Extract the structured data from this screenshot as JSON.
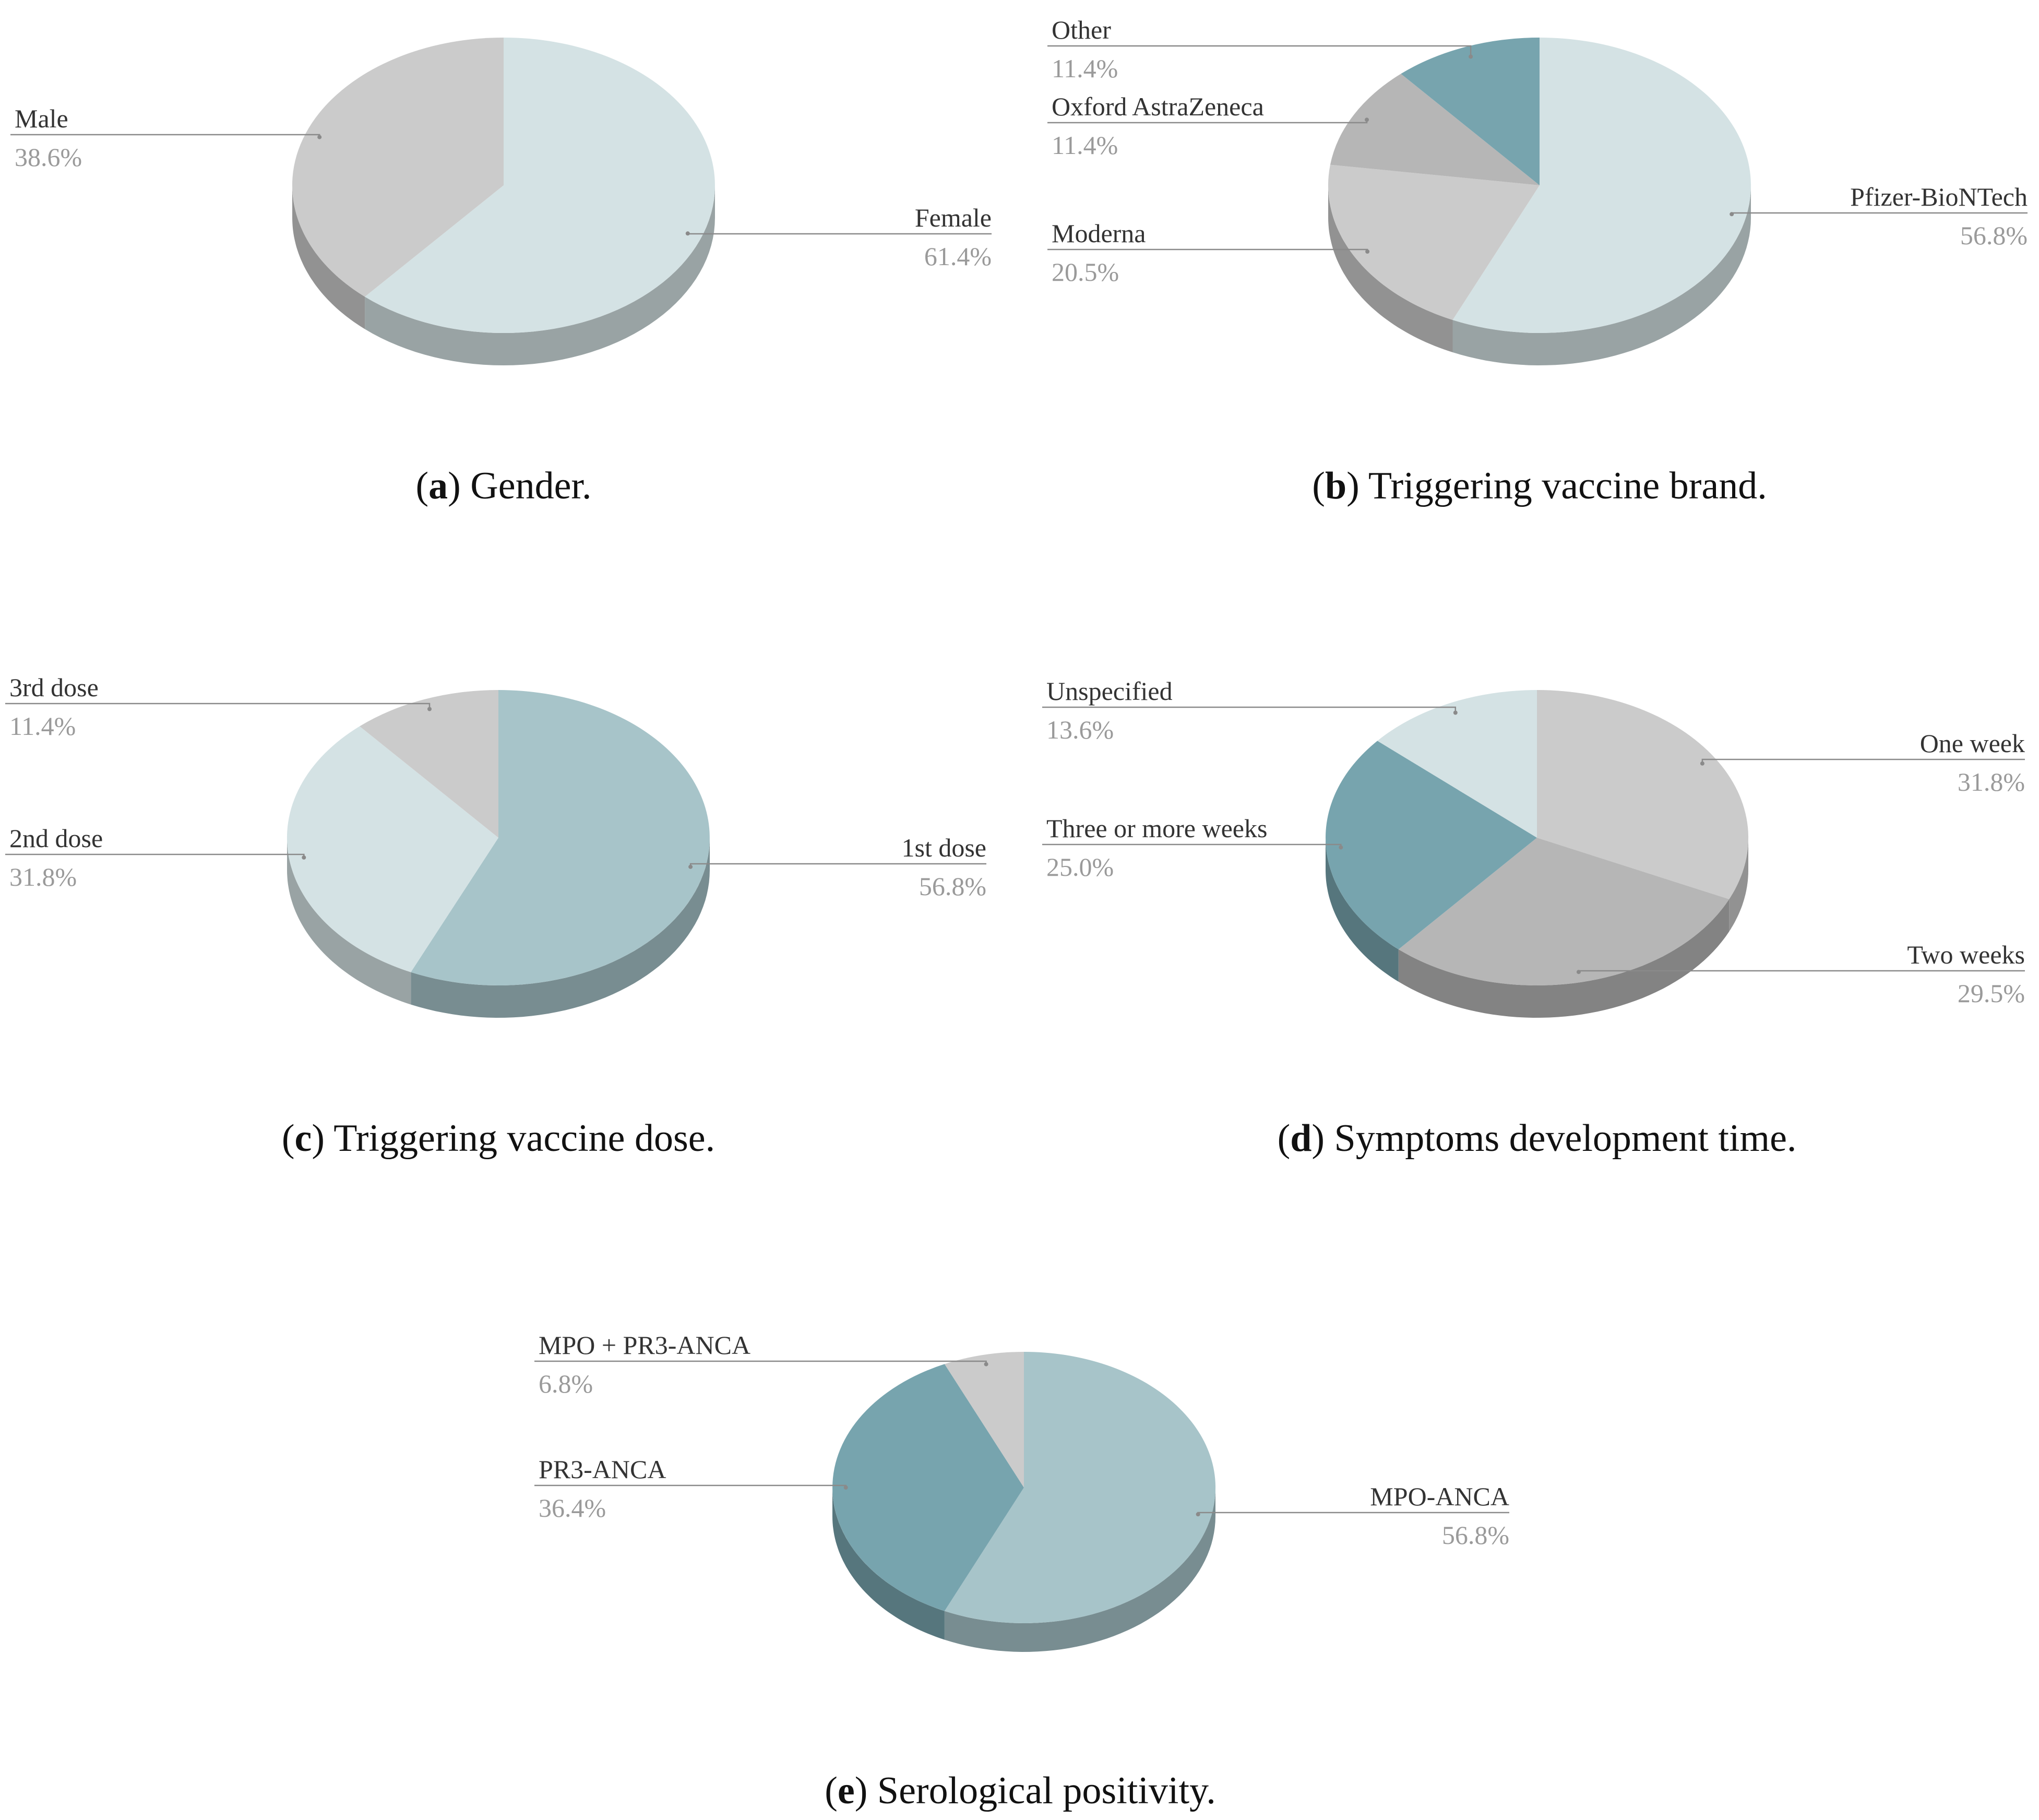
{
  "chart_data": [
    {
      "type": "pie",
      "caption_letter": "a",
      "caption_text": "Gender.",
      "slices": [
        {
          "label": "Female",
          "value": 61.4,
          "pct_text": "61.4%",
          "color": "#d4e2e4"
        },
        {
          "label": "Male",
          "value": 38.6,
          "pct_text": "38.6%",
          "color": "#cbcbcb"
        }
      ]
    },
    {
      "type": "pie",
      "caption_letter": "b",
      "caption_text": "Triggering vaccine brand.",
      "slices": [
        {
          "label": "Pfizer-BioNTech",
          "value": 56.8,
          "pct_text": "56.8%",
          "color": "#d4e2e4"
        },
        {
          "label": "Moderna",
          "value": 20.5,
          "pct_text": "20.5%",
          "color": "#cbcbcb"
        },
        {
          "label": "Oxford AstraZeneca",
          "value": 11.4,
          "pct_text": "11.4%",
          "color": "#b6b6b6"
        },
        {
          "label": "Other",
          "value": 11.4,
          "pct_text": "11.4%",
          "color": "#77a4ae"
        }
      ]
    },
    {
      "type": "pie",
      "caption_letter": "c",
      "caption_text": "Triggering vaccine dose.",
      "slices": [
        {
          "label": "1st dose",
          "value": 56.8,
          "pct_text": "56.8%",
          "color": "#a7c4c9"
        },
        {
          "label": "2nd dose",
          "value": 31.8,
          "pct_text": "31.8%",
          "color": "#d4e2e4"
        },
        {
          "label": "3rd dose",
          "value": 11.4,
          "pct_text": "11.4%",
          "color": "#cbcbcb"
        }
      ]
    },
    {
      "type": "pie",
      "caption_letter": "d",
      "caption_text": "Symptoms development time.",
      "slices": [
        {
          "label": "One week",
          "value": 31.8,
          "pct_text": "31.8%",
          "color": "#cbcbcb"
        },
        {
          "label": "Two weeks",
          "value": 29.5,
          "pct_text": "29.5%",
          "color": "#b6b6b6"
        },
        {
          "label": "Three or more weeks",
          "value": 25.0,
          "pct_text": "25.0%",
          "color": "#77a4ae"
        },
        {
          "label": "Unspecified",
          "value": 13.6,
          "pct_text": "13.6%",
          "color": "#d4e2e4"
        }
      ]
    },
    {
      "type": "pie",
      "caption_letter": "e",
      "caption_text": "Serological positivity.",
      "slices": [
        {
          "label": "MPO-ANCA",
          "value": 56.8,
          "pct_text": "56.8%",
          "color": "#a7c4c9"
        },
        {
          "label": "PR3-ANCA",
          "value": 36.4,
          "pct_text": "36.4%",
          "color": "#77a4ae"
        },
        {
          "label": "MPO + PR3-ANCA",
          "value": 6.8,
          "pct_text": "6.8%",
          "color": "#cbcbcb"
        }
      ]
    }
  ]
}
